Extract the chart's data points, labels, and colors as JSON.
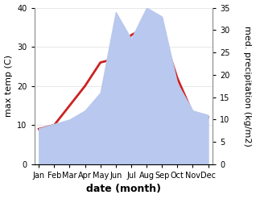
{
  "months": [
    "Jan",
    "Feb",
    "Mar",
    "Apr",
    "May",
    "Jun",
    "Jul",
    "Aug",
    "Sep",
    "Oct",
    "Nov",
    "Dec"
  ],
  "x": [
    0,
    1,
    2,
    3,
    4,
    5,
    6,
    7,
    8,
    9,
    10,
    11
  ],
  "temp_max": [
    9,
    10,
    15,
    20,
    26,
    27,
    33,
    35,
    34,
    22,
    13,
    12
  ],
  "precip": [
    8,
    9,
    10,
    12,
    16,
    34,
    28,
    35,
    33,
    18,
    12,
    11
  ],
  "temp_ylim": [
    0,
    40
  ],
  "precip_ylim": [
    0,
    35
  ],
  "temp_color": "#cc2222",
  "precip_fill_color": "#b8c8ee",
  "xlabel": "date (month)",
  "ylabel_left": "max temp (C)",
  "ylabel_right": "med. precipitation (kg/m2)",
  "temp_yticks": [
    0,
    10,
    20,
    30,
    40
  ],
  "precip_yticks": [
    0,
    5,
    10,
    15,
    20,
    25,
    30,
    35
  ],
  "bg_color": "#ffffff",
  "line_width": 2.0,
  "label_fontsize": 7,
  "axis_label_fontsize": 8,
  "xlabel_fontsize": 9
}
